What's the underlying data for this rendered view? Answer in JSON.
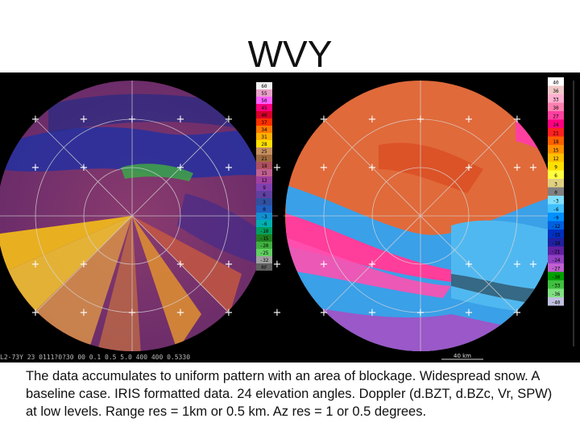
{
  "title": "WVY",
  "caption": "The data accumulates to uniform pattern with an area of blockage.  Widespread snow.  A baseline case.  IRIS formatted data.  24 elevation angles.  Doppler (d.BZT, d.BZc, Vr, SPW) at low levels.  Range res = 1km or 0.5 km.  Az res = 1 or 0.5 degrees.",
  "radar_footer": "L2-73Y 23 0111?0?30  00  0.1  0.5  5.0 400 400 0.5330",
  "range_marker": "40 km",
  "reflectivity_scale": {
    "labels": [
      "60",
      "55",
      "50",
      "45",
      "40",
      "37",
      "34",
      "31",
      "28",
      "25",
      "21",
      "18",
      "15",
      "12",
      "9",
      "6",
      "3",
      "0",
      "-3",
      "-6",
      "-10",
      "-15",
      "-20",
      "-25",
      "-32",
      "RF"
    ],
    "colors": [
      "#f2f2f2",
      "#e8a0c8",
      "#ff60ff",
      "#ff0080",
      "#d8002a",
      "#ff3000",
      "#ff7a00",
      "#ffb000",
      "#ffe000",
      "#c89060",
      "#a06a40",
      "#b05060",
      "#c06090",
      "#a040a0",
      "#8040b0",
      "#6040a0",
      "#3050a0",
      "#2060c0",
      "#1090d0",
      "#00b0b0",
      "#00a060",
      "#208020",
      "#40b040",
      "#60d060",
      "#a0a0a0",
      "#606060"
    ]
  },
  "velocity_scale": {
    "labels": [
      "40",
      "36",
      "33",
      "30",
      "27",
      "24",
      "21",
      "18",
      "15",
      "12",
      "9",
      "6",
      "3",
      "0",
      "-3",
      "-6",
      "-9",
      "-12",
      "-15",
      "-18",
      "-21",
      "-24",
      "-27",
      "-30",
      "-33",
      "-36",
      "-40"
    ],
    "colors": [
      "#ffffff",
      "#f0c8c8",
      "#ffb0d0",
      "#ff80b0",
      "#ff40a0",
      "#ff0080",
      "#ff2020",
      "#ff6000",
      "#ff9000",
      "#ffc000",
      "#ffe000",
      "#ffff40",
      "#e0d080",
      "#808080",
      "#80e0ff",
      "#40c0ff",
      "#0090ff",
      "#0060e0",
      "#0030c0",
      "#2020a0",
      "#6020a0",
      "#9040c0",
      "#c060d0",
      "#00a000",
      "#40c040",
      "#80e080",
      "#c0c0e0"
    ]
  }
}
